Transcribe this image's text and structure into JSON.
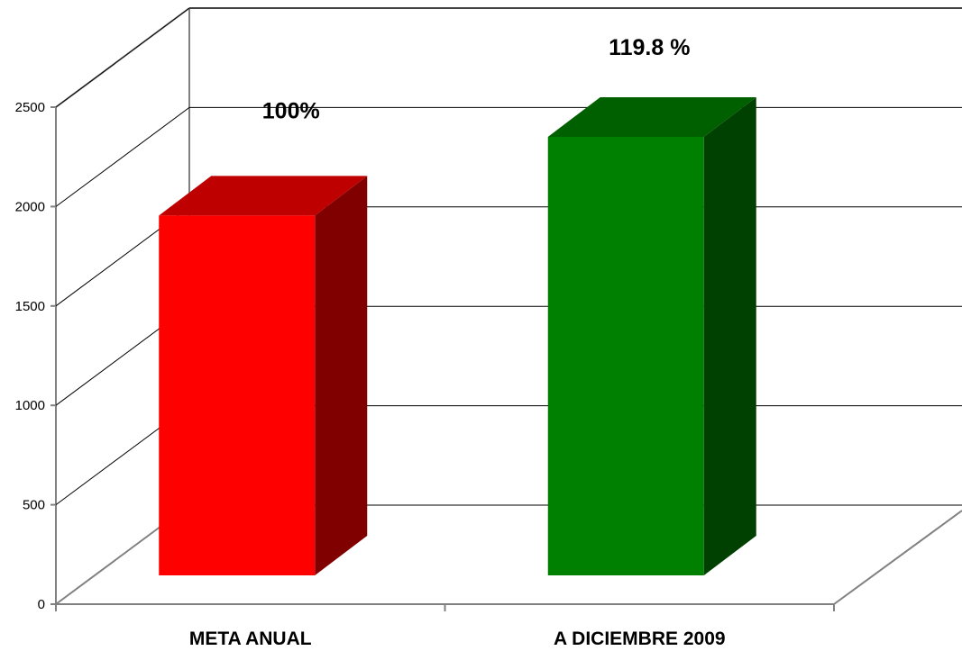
{
  "chart_data": {
    "type": "bar",
    "title": "",
    "xlabel": "",
    "ylabel": "",
    "categories": [
      "META ANUAL",
      "A DICIEMBRE 2009"
    ],
    "values": [
      2000,
      2396
    ],
    "data_labels": [
      "100%",
      "119.8 %"
    ],
    "ylim": [
      0,
      2500
    ],
    "yticks": [
      0,
      500,
      1000,
      1500,
      2000,
      2500
    ],
    "ytick_labels": [
      "0",
      "500",
      "1000",
      "1500",
      "2000",
      "2500"
    ],
    "grid": true,
    "legend": "none",
    "three_d": true,
    "colors": {
      "bars": [
        {
          "front": "#ff0000",
          "top": "#bf0000",
          "side": "#800000"
        },
        {
          "front": "#008000",
          "top": "#006000",
          "side": "#004000"
        }
      ],
      "axis": "#808080",
      "grid": "#000000"
    }
  }
}
